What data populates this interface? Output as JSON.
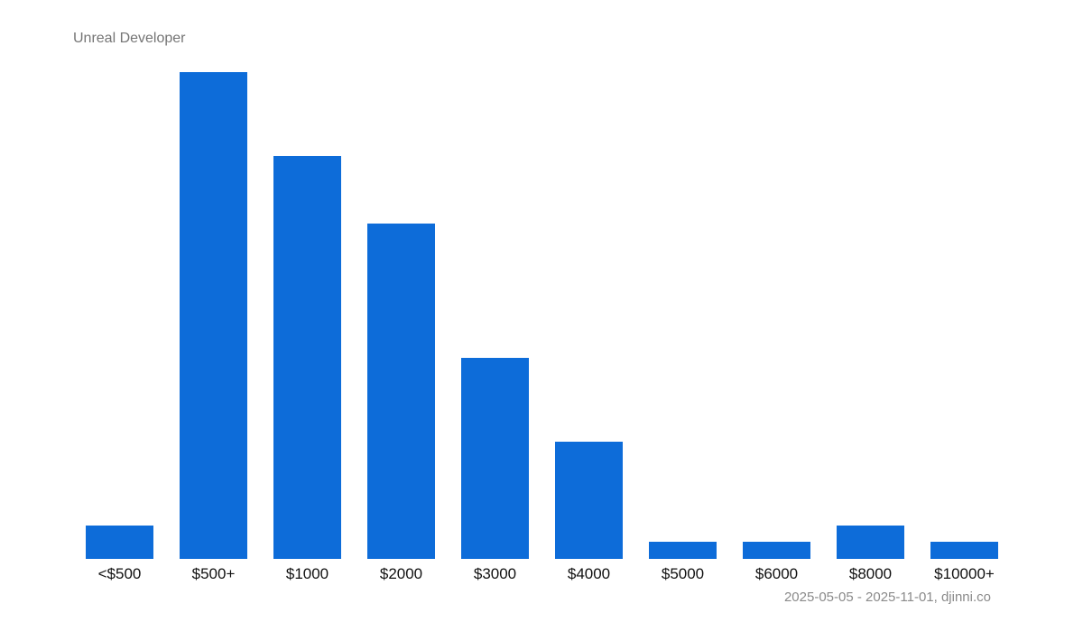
{
  "chart": {
    "title": "Unreal Developer",
    "footer": "2025-05-05 - 2025-11-01, djinni.co"
  },
  "chart_data": {
    "type": "bar",
    "title": "Unreal Developer",
    "categories": [
      "<$500",
      "$500+",
      "$1000",
      "$2000",
      "$3000",
      "$4000",
      "$5000",
      "$6000",
      "$8000",
      "$10000+"
    ],
    "values": [
      2,
      29,
      24,
      20,
      12,
      7,
      1,
      1,
      2,
      1
    ],
    "xlabel": "",
    "ylabel": "",
    "ylim": [
      0,
      29
    ],
    "grid": false,
    "legend": "none",
    "y_axis_visible": false,
    "footer": "2025-05-05 - 2025-11-01, djinni.co",
    "colors": {
      "bar": "#0d6cd9",
      "title": "#757575",
      "x_label": "#111111",
      "footer": "#8a8a8a",
      "background": "#ffffff"
    }
  }
}
